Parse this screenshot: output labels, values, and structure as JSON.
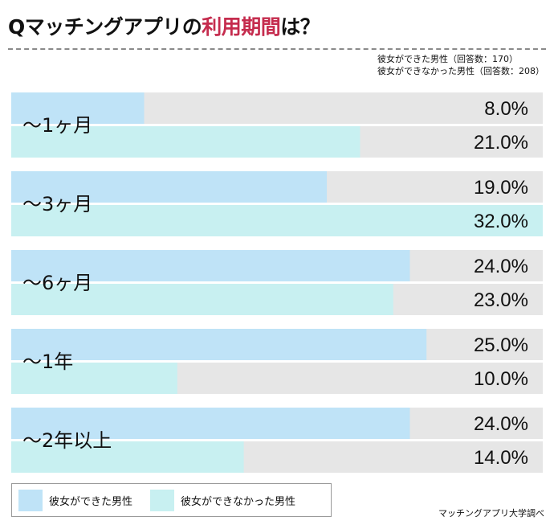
{
  "title": {
    "main": "Qマッチングアプリの",
    "accent": "利用期間",
    "suffix": "は？",
    "accent_color": "#c52c4e"
  },
  "respondents": [
    "彼女ができた男性（回答数：170）",
    "彼女ができなかった男性（回答数：208）"
  ],
  "source": "マッチングアプリ大学調べ",
  "chart_data": {
    "type": "bar",
    "orientation": "horizontal",
    "categories": [
      "〜1ヶ月",
      "〜3ヶ月",
      "〜6ヶ月",
      "〜1年",
      "〜2年以上"
    ],
    "series": [
      {
        "name": "彼女ができた男性",
        "values": [
          8.0,
          19.0,
          24.0,
          25.0,
          24.0
        ],
        "labels": [
          "8.0%",
          "19.0%",
          "24.0%",
          "25.0%",
          "24.0%"
        ],
        "color": "#bfe3f7"
      },
      {
        "name": "彼女ができなかった男性",
        "values": [
          21.0,
          32.0,
          23.0,
          10.0,
          14.0
        ],
        "labels": [
          "21.0%",
          "32.0%",
          "23.0%",
          "10.0%",
          "14.0%"
        ],
        "color": "#c8f0f1"
      }
    ],
    "xlim": [
      0,
      32
    ],
    "unit": "%",
    "track_color": "#e6e6e6",
    "grid": false,
    "legend_position": "bottom-left"
  }
}
